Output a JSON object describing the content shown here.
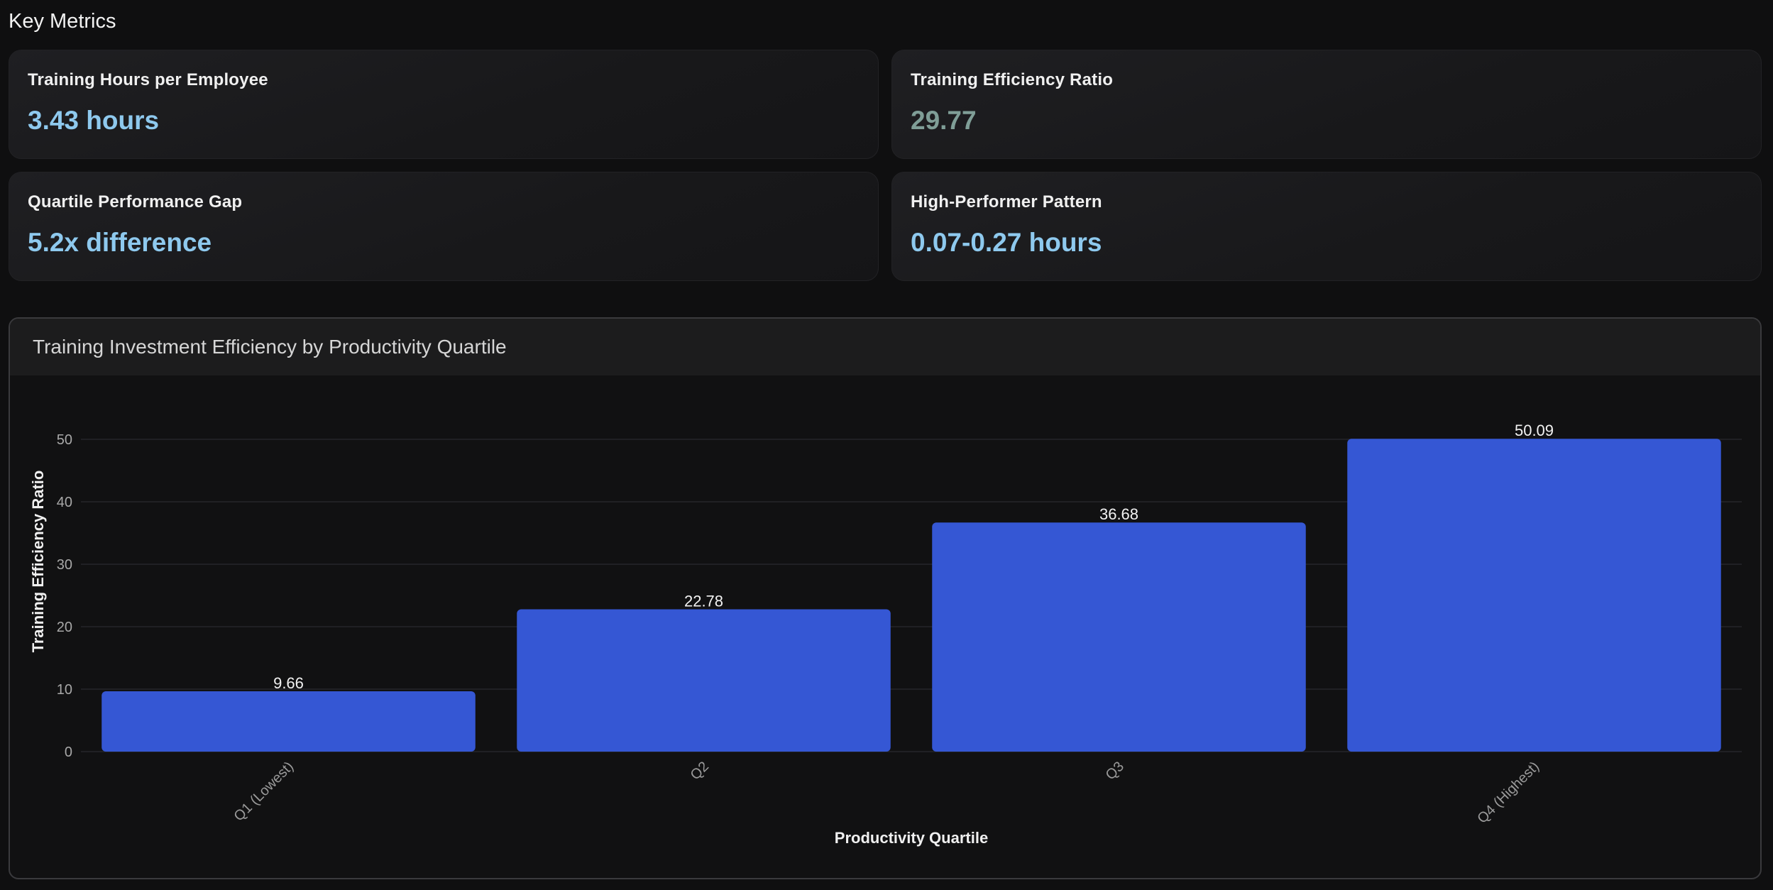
{
  "section": {
    "title": "Key Metrics"
  },
  "metrics": [
    {
      "label": "Training Hours per Employee",
      "value": "3.43 hours"
    },
    {
      "label": "Training Efficiency Ratio",
      "value": "29.77"
    },
    {
      "label": "Quartile Performance Gap",
      "value": "5.2x difference"
    },
    {
      "label": "High-Performer Pattern",
      "value": "0.07-0.27 hours"
    }
  ],
  "colors": {
    "bar": "#3557d4",
    "metric_value": "#8ec9ee",
    "metric_value_muted": "#7f9e97"
  },
  "chart_data": {
    "type": "bar",
    "title": "Training Investment Efficiency by Productivity Quartile",
    "categories": [
      "Q1 (Lowest)",
      "Q2",
      "Q3",
      "Q4 (Highest)"
    ],
    "values": [
      9.66,
      22.78,
      36.68,
      50.09
    ],
    "data_labels": [
      "9.66",
      "22.78",
      "36.68",
      "50.09"
    ],
    "xlabel": "Productivity Quartile",
    "ylabel": "Training Efficiency Ratio",
    "ylim": [
      0,
      50
    ],
    "yticks": [
      0,
      10,
      20,
      30,
      40,
      50
    ],
    "grid": true,
    "legend": "none"
  }
}
